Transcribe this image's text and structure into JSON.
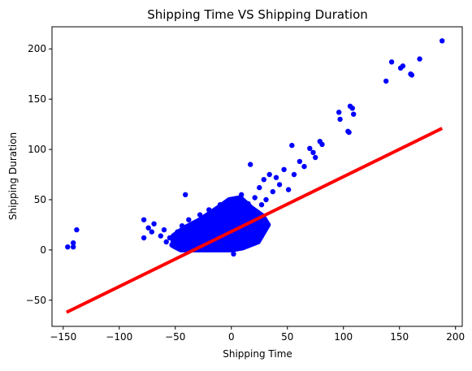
{
  "chart_data": {
    "type": "scatter",
    "title": "Shipping Time VS Shipping Duration",
    "xlabel": "Shipping Time",
    "ylabel": "Shipping Duration",
    "xlim": [
      -160,
      206
    ],
    "ylim": [
      -76,
      222
    ],
    "xticks": [
      -150,
      -100,
      -50,
      0,
      50,
      100,
      150,
      200
    ],
    "xtick_labels": [
      "−150",
      "−100",
      "−50",
      "0",
      "50",
      "100",
      "150",
      "200"
    ],
    "yticks": [
      -50,
      0,
      50,
      100,
      150,
      200
    ],
    "ytick_labels": [
      "−50",
      "0",
      "50",
      "100",
      "150",
      "200"
    ],
    "grid": false,
    "series": [
      {
        "kind": "scatter",
        "color": "#0000ff",
        "points": [
          [
            -146,
            3
          ],
          [
            -141,
            7
          ],
          [
            -141,
            3
          ],
          [
            -138,
            20
          ],
          [
            -78,
            30
          ],
          [
            -78,
            12
          ],
          [
            -74,
            22
          ],
          [
            -71,
            18
          ],
          [
            -69,
            26
          ],
          [
            -63,
            14
          ],
          [
            -60,
            20
          ],
          [
            -58,
            8
          ],
          [
            -55,
            12
          ],
          [
            -53,
            5
          ],
          [
            -48,
            18
          ],
          [
            -46,
            8
          ],
          [
            -44,
            24
          ],
          [
            -41,
            55
          ],
          [
            -40,
            10
          ],
          [
            -38,
            30
          ],
          [
            -35,
            15
          ],
          [
            -33,
            6
          ],
          [
            -30,
            20
          ],
          [
            -28,
            35
          ],
          [
            -25,
            12
          ],
          [
            -22,
            28
          ],
          [
            -20,
            40
          ],
          [
            -18,
            18
          ],
          [
            -16,
            7
          ],
          [
            -14,
            32
          ],
          [
            -12,
            22
          ],
          [
            -10,
            45
          ],
          [
            -8,
            15
          ],
          [
            -6,
            30
          ],
          [
            -4,
            5
          ],
          [
            -2,
            25
          ],
          [
            0,
            50
          ],
          [
            2,
            -4
          ],
          [
            3,
            18
          ],
          [
            5,
            40
          ],
          [
            7,
            28
          ],
          [
            9,
            55
          ],
          [
            11,
            35
          ],
          [
            13,
            22
          ],
          [
            15,
            46
          ],
          [
            17,
            85
          ],
          [
            19,
            38
          ],
          [
            21,
            52
          ],
          [
            23,
            30
          ],
          [
            25,
            62
          ],
          [
            27,
            45
          ],
          [
            29,
            70
          ],
          [
            31,
            50
          ],
          [
            34,
            75
          ],
          [
            37,
            58
          ],
          [
            40,
            72
          ],
          [
            43,
            65
          ],
          [
            47,
            80
          ],
          [
            51,
            60
          ],
          [
            54,
            104
          ],
          [
            56,
            75
          ],
          [
            61,
            88
          ],
          [
            65,
            83
          ],
          [
            70,
            101
          ],
          [
            73,
            97
          ],
          [
            75,
            92
          ],
          [
            79,
            108
          ],
          [
            81,
            105
          ],
          [
            96,
            137
          ],
          [
            97,
            130
          ],
          [
            104,
            118
          ],
          [
            105,
            117
          ],
          [
            106,
            143
          ],
          [
            108,
            141
          ],
          [
            109,
            135
          ],
          [
            138,
            168
          ],
          [
            143,
            187
          ],
          [
            151,
            181
          ],
          [
            153,
            183
          ],
          [
            160,
            175
          ],
          [
            161,
            174
          ],
          [
            168,
            190
          ],
          [
            188,
            208
          ]
        ]
      },
      {
        "kind": "line",
        "color": "#ff0000",
        "points": [
          [
            -147,
            -62
          ],
          [
            188,
            121
          ]
        ]
      }
    ]
  }
}
